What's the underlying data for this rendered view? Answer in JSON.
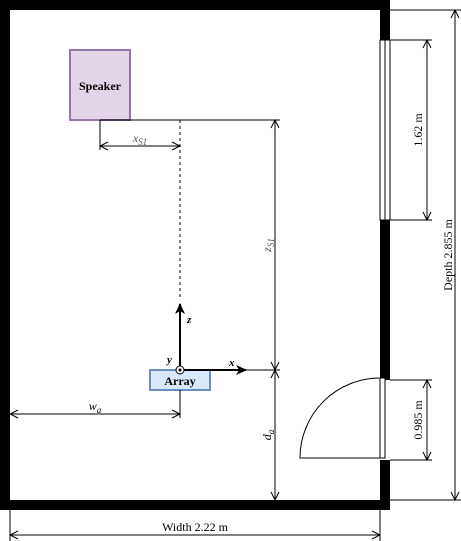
{
  "speaker": {
    "label": "Speaker",
    "fill": "#e1d5e7",
    "stroke": "#9673a6"
  },
  "array": {
    "label": "Array",
    "fill": "#dae8fc",
    "stroke": "#6c8ebf"
  },
  "axes": {
    "x": "x",
    "y": "y",
    "z": "z"
  },
  "dimensions": {
    "xs1": {
      "base": "x",
      "sub": "S1"
    },
    "zs1": {
      "base": "z",
      "sub": "S1"
    },
    "wa": {
      "base": "w",
      "sub": "a"
    },
    "da": {
      "base": "d",
      "sub": "a"
    },
    "width": "Width 2.22 m",
    "depth": "Depth 2.855 m",
    "window": "1.62  m",
    "door": "0.985 m"
  },
  "colors": {
    "wall": "#000000",
    "background": "#ffffff"
  }
}
